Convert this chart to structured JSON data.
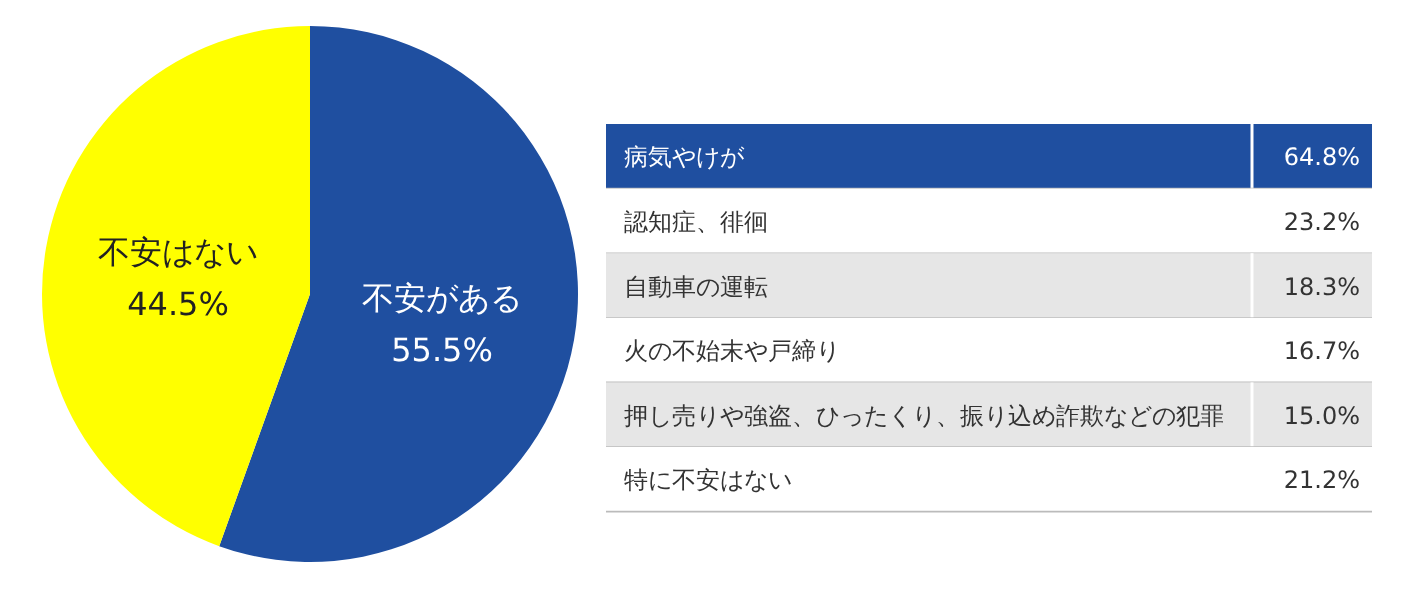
{
  "chart_data": [
    {
      "type": "pie",
      "categories": [
        "不安がある",
        "不安はない"
      ],
      "values": [
        55.5,
        44.5
      ],
      "colors": [
        "#1f4fa0",
        "#ffff00"
      ],
      "value_labels": [
        "55.5%",
        "44.5%"
      ]
    },
    {
      "type": "other",
      "categories": [
        "病気やけが",
        "認知症、徘徊",
        "自動車の運転",
        "火の不始末や戸締り",
        "押し売りや強盗、ひったくり、振り込め詐欺などの犯罪",
        "特に不安はない"
      ],
      "value_labels": [
        "64.8%",
        "23.2%",
        "18.3%",
        "16.7%",
        "15.0%",
        "21.2%"
      ],
      "colors": [
        "#1f4fa0",
        "#ffffff",
        "#e6e6e6",
        "#ffffff",
        "#e6e6e6",
        "#ffffff"
      ]
    }
  ]
}
